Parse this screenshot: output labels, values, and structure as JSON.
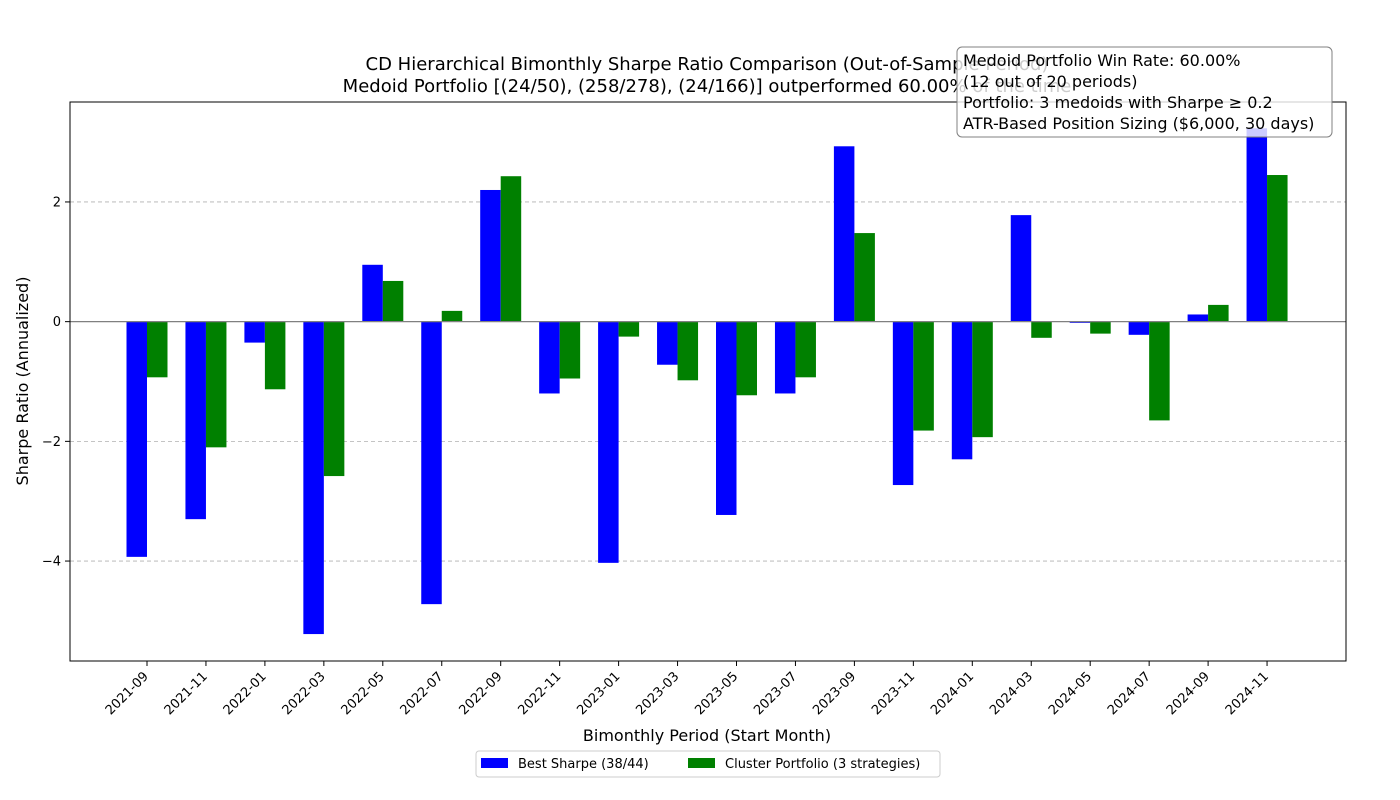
{
  "chart_data": {
    "type": "bar",
    "title": "CD Hierarchical Bimonthly Sharpe Ratio Comparison (Out-of-Sample Period)",
    "subtitle": "Medoid Portfolio [(24/50), (258/278), (24/166)] outperformed 60.00% of the time",
    "xlabel": "Bimonthly Period (Start Month)",
    "ylabel": "Sharpe Ratio (Annualized)",
    "ylim": [
      -5.67,
      3.67
    ],
    "yticks": [
      -4,
      -2,
      0,
      2
    ],
    "ytick_labels": [
      "−4",
      "−2",
      "0",
      "2"
    ],
    "grid": "y-dashed",
    "legend_position": "bottom-center",
    "categories": [
      "2021-09",
      "2021-11",
      "2022-01",
      "2022-03",
      "2022-05",
      "2022-07",
      "2022-09",
      "2022-11",
      "2023-01",
      "2023-03",
      "2023-05",
      "2023-07",
      "2023-09",
      "2023-11",
      "2024-01",
      "2024-03",
      "2024-05",
      "2024-07",
      "2024-09",
      "2024-11"
    ],
    "series": [
      {
        "name": "Best Sharpe (38/44)",
        "color": "#0000ff",
        "values": [
          -3.93,
          -3.3,
          -0.35,
          -5.22,
          0.95,
          -4.72,
          2.2,
          -1.2,
          -4.03,
          -0.72,
          -3.23,
          -1.2,
          2.93,
          -2.73,
          -2.3,
          1.78,
          -0.02,
          -0.22,
          0.12,
          3.23
        ]
      },
      {
        "name": "Cluster Portfolio (3 strategies)",
        "color": "#008000",
        "values": [
          -0.93,
          -2.1,
          -1.13,
          -2.58,
          0.68,
          0.18,
          2.43,
          -0.95,
          -0.25,
          -0.98,
          -1.23,
          -0.93,
          1.48,
          -1.82,
          -1.93,
          -0.27,
          -0.2,
          -1.65,
          0.28,
          2.45
        ]
      }
    ],
    "annotation": {
      "lines": [
        "Medoid Portfolio Win Rate: 60.00%",
        "(12 out of 20 periods)",
        "Portfolio: 3 medoids with Sharpe ≥ 0.2",
        "ATR-Based Position Sizing ($6,000, 30 days)"
      ],
      "position": "top-right"
    }
  }
}
